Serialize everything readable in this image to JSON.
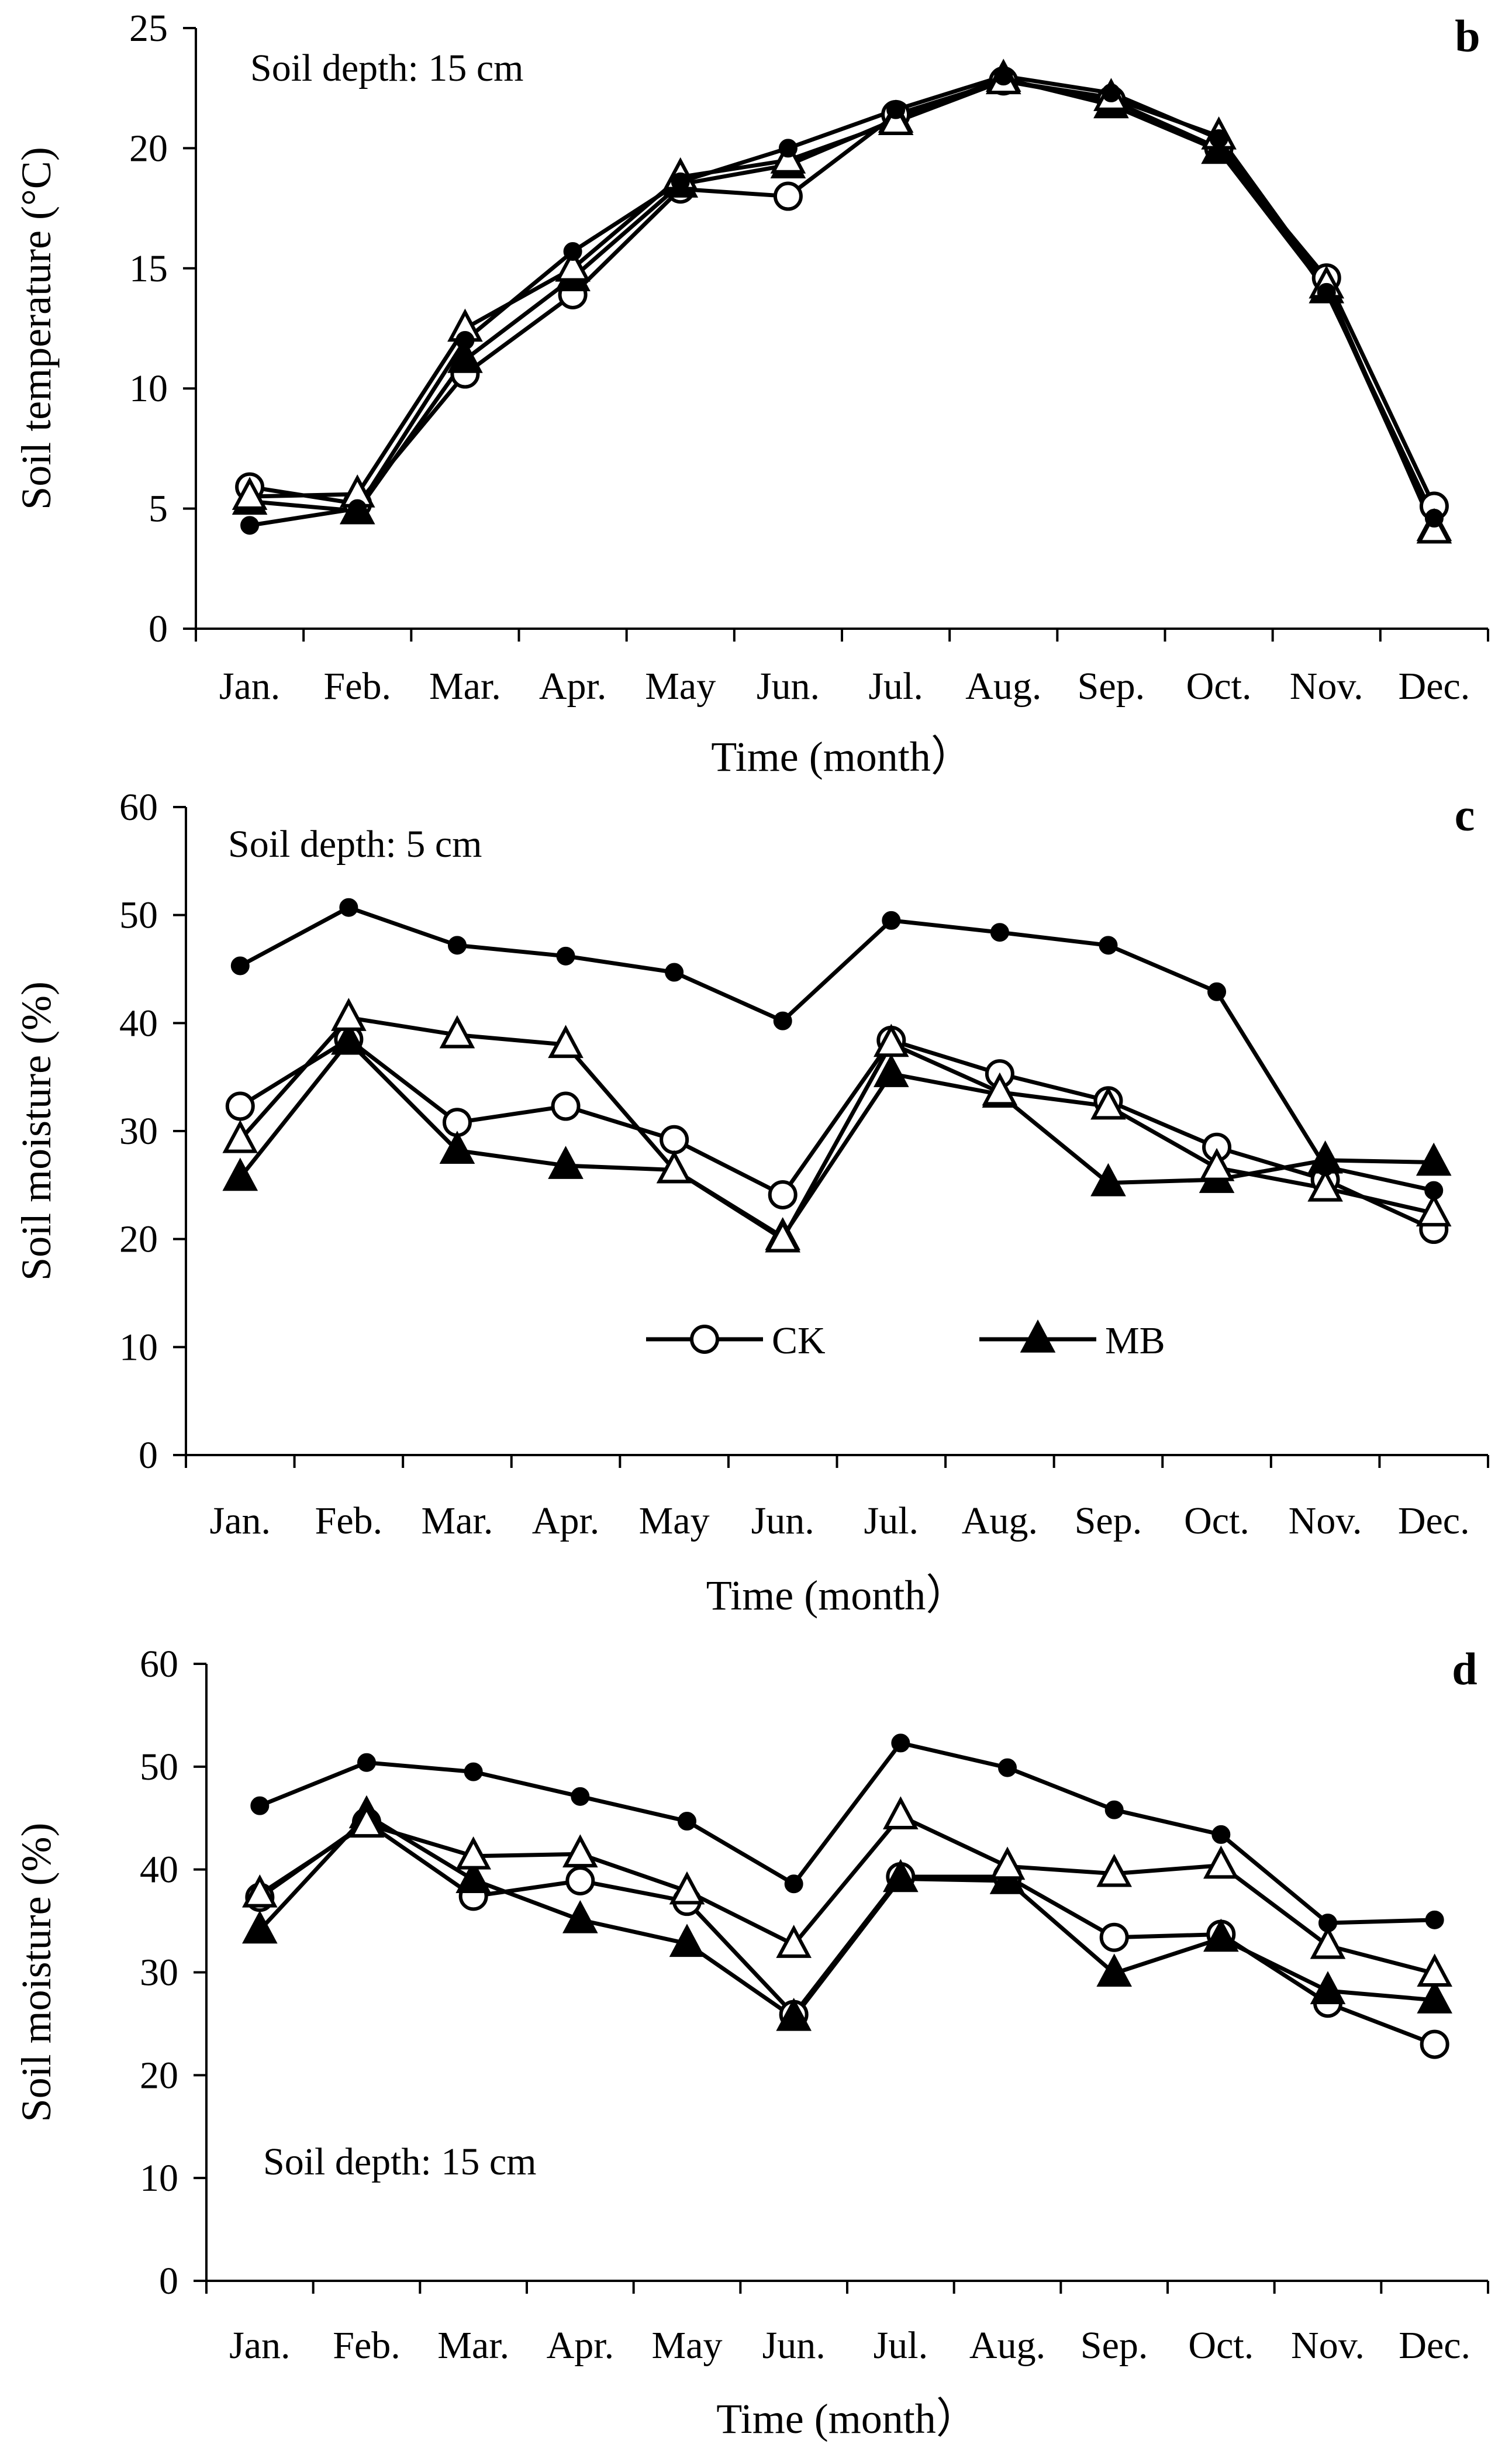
{
  "chart_data": [
    {
      "type": "line",
      "panel_label": "b",
      "annotation": "Soil depth: 15 cm",
      "xlabel": "Time (month）",
      "ylabel": "Soil temperature (°C)",
      "ylim": [
        0,
        25
      ],
      "yticks": [
        "0",
        "5",
        "10",
        "15",
        "20",
        "25"
      ],
      "categories": [
        "Jan.",
        "Feb.",
        "Mar.",
        "Apr.",
        "May",
        "Jun.",
        "Jul.",
        "Aug.",
        "Sep.",
        "Oct.",
        "Nov.",
        "Dec."
      ],
      "series": [
        {
          "name": "CK",
          "marker": "open-circle",
          "values": [
            5.9,
            5.2,
            10.6,
            13.9,
            18.3,
            18.0,
            21.4,
            22.8,
            22.0,
            20.0,
            14.6,
            5.1
          ]
        },
        {
          "name": "MB",
          "marker": "filled-triangle",
          "values": [
            5.3,
            4.9,
            11.2,
            14.6,
            18.5,
            19.3,
            21.2,
            22.9,
            21.8,
            19.9,
            14.1,
            4.2
          ]
        },
        {
          "name": "series-open-triangle",
          "marker": "open-triangle",
          "values": [
            5.5,
            5.6,
            12.5,
            15.0,
            18.8,
            19.5,
            21.1,
            22.8,
            22.1,
            20.5,
            14.3,
            4.1
          ]
        },
        {
          "name": "series-filled-circle",
          "marker": "filled-circle",
          "values": [
            4.3,
            5.0,
            12.0,
            15.7,
            18.6,
            20.0,
            21.6,
            23.0,
            22.3,
            20.4,
            14.0,
            4.6
          ]
        }
      ]
    },
    {
      "type": "line",
      "panel_label": "c",
      "annotation": "Soil depth: 5 cm",
      "xlabel": "Time (month）",
      "ylabel": "Soil moisture  (%)",
      "ylim": [
        0,
        60
      ],
      "yticks": [
        "0",
        "10",
        "20",
        "30",
        "40",
        "50",
        "60"
      ],
      "categories": [
        "Jan.",
        "Feb.",
        "Mar.",
        "Apr.",
        "May",
        "Jun.",
        "Jul.",
        "Aug.",
        "Sep.",
        "Oct.",
        "Nov.",
        "Dec."
      ],
      "legend": {
        "placement": "center",
        "entries": [
          "CK",
          "MB"
        ]
      },
      "series": [
        {
          "name": "CK",
          "marker": "open-circle",
          "values": [
            32.3,
            38.5,
            30.8,
            32.3,
            29.2,
            24.1,
            38.4,
            35.3,
            32.8,
            28.5,
            25.5,
            20.9
          ]
        },
        {
          "name": "MB",
          "marker": "filled-triangle",
          "values": [
            25.7,
            38.3,
            28.2,
            26.8,
            26.4,
            20.2,
            35.3,
            33.4,
            25.2,
            25.5,
            27.3,
            27.1
          ]
        },
        {
          "name": "series-open-triangle",
          "marker": "open-triangle",
          "values": [
            29.2,
            40.5,
            38.9,
            38.0,
            26.4,
            20.0,
            38.1,
            33.6,
            32.3,
            26.6,
            24.7,
            22.4
          ]
        },
        {
          "name": "series-filled-circle",
          "marker": "filled-circle",
          "values": [
            45.3,
            50.7,
            47.2,
            46.2,
            44.7,
            40.2,
            49.5,
            48.4,
            47.2,
            42.9,
            26.7,
            24.5
          ]
        }
      ]
    },
    {
      "type": "line",
      "panel_label": "d",
      "annotation": "Soil depth: 15 cm",
      "xlabel": "Time (month）",
      "ylabel": "Soil moisture  (%)",
      "ylim": [
        0,
        60
      ],
      "yticks": [
        "0",
        "10",
        "20",
        "30",
        "40",
        "50",
        "60"
      ],
      "categories": [
        "Jan.",
        "Feb.",
        "Mar.",
        "Apr.",
        "May",
        "Jun.",
        "Jul.",
        "Aug.",
        "Sep.",
        "Oct.",
        "Nov.",
        "Dec."
      ],
      "series": [
        {
          "name": "CK",
          "marker": "open-circle",
          "values": [
            37.3,
            44.6,
            37.4,
            38.9,
            36.9,
            25.9,
            39.3,
            39.3,
            33.4,
            33.7,
            27.0,
            23.0
          ]
        },
        {
          "name": "MB",
          "marker": "filled-triangle",
          "values": [
            34.1,
            45.3,
            39.0,
            35.1,
            32.8,
            25.6,
            39.1,
            38.9,
            29.9,
            33.3,
            28.2,
            27.3
          ]
        },
        {
          "name": "series-open-triangle",
          "marker": "open-triangle",
          "values": [
            37.6,
            44.4,
            41.3,
            41.5,
            37.9,
            32.7,
            45.2,
            40.3,
            39.6,
            40.4,
            32.6,
            29.9
          ]
        },
        {
          "name": "series-filled-circle",
          "marker": "filled-circle",
          "values": [
            46.2,
            50.4,
            49.5,
            47.1,
            44.7,
            38.6,
            52.3,
            49.9,
            45.8,
            43.4,
            34.8,
            35.1
          ]
        }
      ]
    }
  ]
}
